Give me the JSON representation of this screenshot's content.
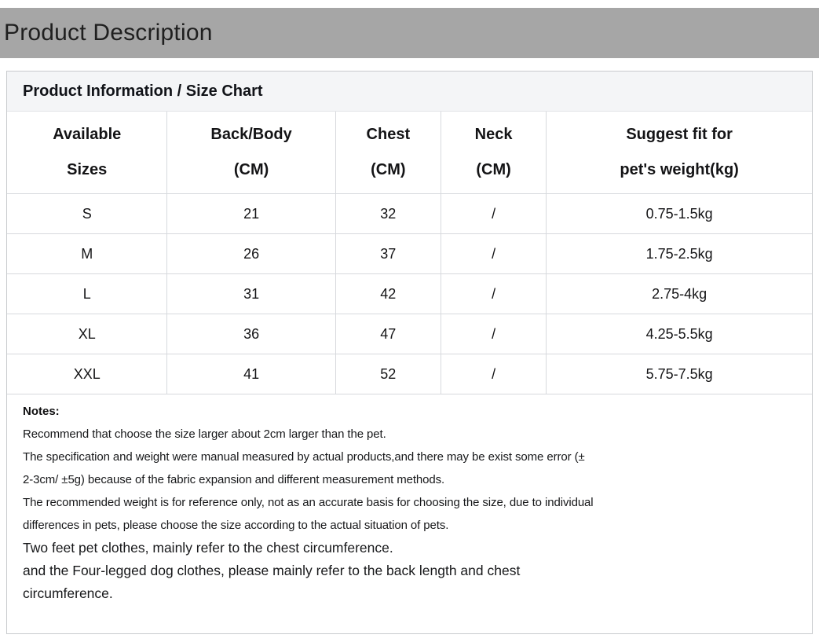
{
  "banner": {
    "title": "Product Description"
  },
  "panel": {
    "title": "Product Information / Size Chart"
  },
  "size_table": {
    "headers": [
      {
        "line1": "Available",
        "line2": "Sizes"
      },
      {
        "line1": "Back/Body",
        "line2": "(CM)"
      },
      {
        "line1": "Chest",
        "line2": "(CM)"
      },
      {
        "line1": "Neck",
        "line2": "(CM)"
      },
      {
        "line1": "Suggest fit for",
        "line2": "pet's weight(kg)"
      }
    ],
    "rows": [
      [
        "S",
        "21",
        "32",
        "/",
        "0.75-1.5kg"
      ],
      [
        "M",
        "26",
        "37",
        "/",
        "1.75-2.5kg"
      ],
      [
        "L",
        "31",
        "42",
        "/",
        "2.75-4kg"
      ],
      [
        "XL",
        "36",
        "47",
        "/",
        "4.25-5.5kg"
      ],
      [
        "XXL",
        "41",
        "52",
        "/",
        "5.75-7.5kg"
      ]
    ]
  },
  "notes": {
    "label": "Notes:",
    "lines": [
      "Recommend that choose the size larger about 2cm larger than the pet.",
      "The specification and weight were manual measured by actual products,and there may be exist some error (±",
      "2-3cm/ ±5g) because of the fabric expansion and different measurement methods.",
      "The recommended weight is for reference only, not as an accurate basis for choosing the size, due to individual",
      "differences in pets, please choose the size according to the actual situation of pets."
    ],
    "large_lines": [
      "Two feet pet clothes, mainly refer to the chest circumference.",
      "and the Four-legged dog clothes, please mainly refer to the back length and chest",
      "circumference."
    ]
  },
  "colors": {
    "banner_bg": "#a6a6a6",
    "panel_heading_bg": "#f4f5f7",
    "panel_border": "#c8cacd",
    "table_border": "#d7d9dd",
    "text": "#1a1a1a"
  }
}
